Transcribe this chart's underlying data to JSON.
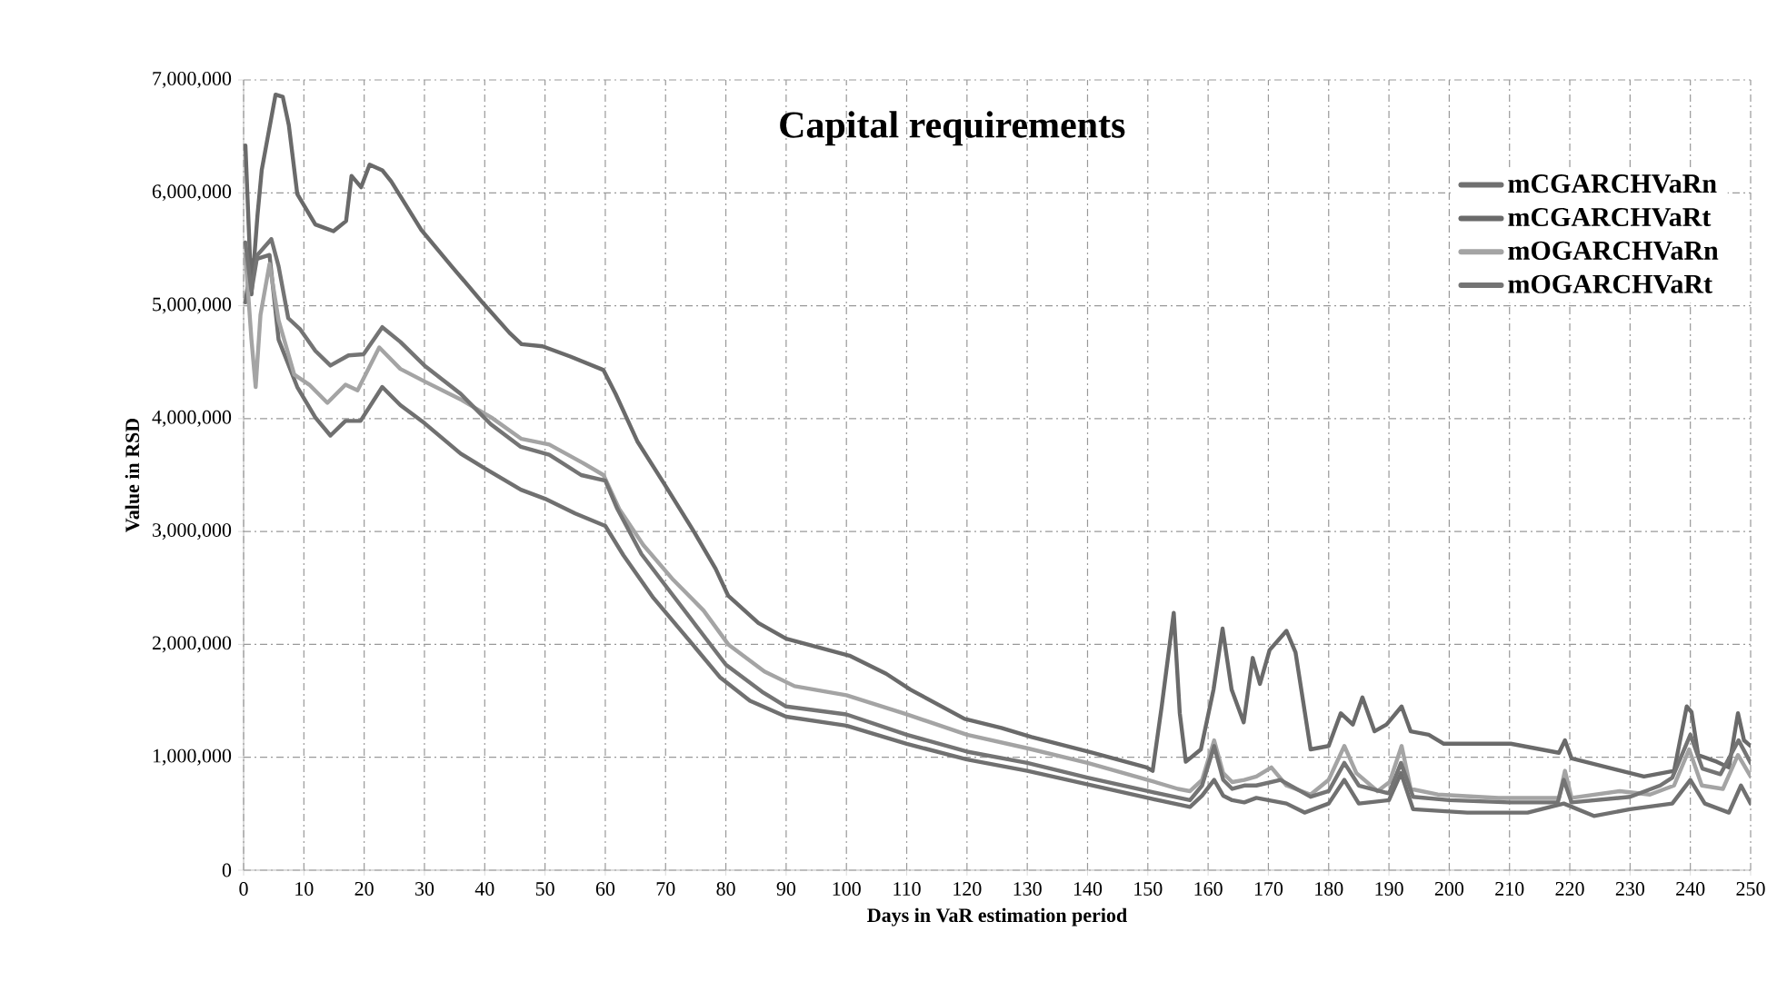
{
  "chart_data": {
    "type": "line",
    "title": "Capital requirements",
    "xlabel": "Days in VaR estimation period",
    "ylabel": "Value in RSD",
    "xlim": [
      0,
      250
    ],
    "xticks": [
      0,
      10,
      20,
      30,
      40,
      50,
      60,
      70,
      80,
      90,
      100,
      110,
      120,
      130,
      140,
      150,
      160,
      170,
      180,
      190,
      200,
      210,
      220,
      230,
      240,
      250
    ],
    "ylim": [
      0,
      7000000
    ],
    "yticks": [
      0,
      {
        "value": 1000000,
        "label": "1,000,000"
      },
      {
        "value": 2000000,
        "label": "2,000,000"
      },
      {
        "value": 3000000,
        "label": "3,000,000"
      },
      {
        "value": 4000000,
        "label": "4,000,000"
      },
      {
        "value": 5000000,
        "label": "5,000,000"
      },
      {
        "value": 6000000,
        "label": "6,000,000"
      },
      {
        "value": 7000000,
        "label": "7,000,000"
      }
    ],
    "grid": true,
    "legend": "top right",
    "marker": "none",
    "line_style": "solid",
    "series": [
      {
        "name": "mCGARCHVaRn",
        "color": "#707070",
        "x": [
          0.3,
          1.3,
          4.3,
          5.8,
          8.9,
          11.9,
          14.4,
          16.9,
          19.4,
          23,
          26,
          30,
          36,
          40,
          46,
          50,
          55,
          60,
          63,
          68,
          74,
          79,
          84,
          90,
          100,
          110,
          120,
          130,
          140,
          150,
          157,
          159,
          161,
          162.5,
          164,
          166,
          168,
          173,
          176,
          180,
          182.6,
          185,
          190,
          192,
          194,
          203,
          213,
          219,
          224,
          230,
          237,
          240,
          242.4,
          246.4,
          248.4,
          250
        ],
        "values": [
          5030000,
          5400000,
          5450000,
          4700000,
          4280000,
          4010000,
          3850000,
          3980000,
          3980000,
          4280000,
          4120000,
          3960000,
          3690000,
          3560000,
          3370000,
          3290000,
          3160000,
          3050000,
          2790000,
          2410000,
          2030000,
          1710000,
          1500000,
          1360000,
          1280000,
          1120000,
          980000,
          880000,
          760000,
          640000,
          560000,
          660000,
          800000,
          660000,
          620000,
          600000,
          640000,
          590000,
          510000,
          590000,
          800000,
          590000,
          620000,
          860000,
          540000,
          510000,
          510000,
          590000,
          480000,
          540000,
          590000,
          800000,
          590000,
          510000,
          750000,
          590000
        ]
      },
      {
        "name": "mCGARCHVaRt",
        "color": "#6a6a6a",
        "x": [
          0.3,
          1.3,
          2.3,
          3,
          5.3,
          6.5,
          7.5,
          8.9,
          11.9,
          14.9,
          17,
          17.9,
          19.5,
          20.9,
          23,
          24.5,
          29.5,
          34.5,
          39.6,
          44.1,
          46.1,
          49.6,
          54.2,
          59.7,
          61.7,
          65.3,
          69.8,
          74.8,
          78.3,
          80.4,
          85.4,
          90,
          100.5,
          106.6,
          110.6,
          119.6,
          125.7,
          130.7,
          140.8,
          149.8,
          150.8,
          152.3,
          154.3,
          155.3,
          156.3,
          158.8,
          160.9,
          162.4,
          163.9,
          165.9,
          167.4,
          168.6,
          170.2,
          173,
          174.5,
          177,
          180,
          182,
          184,
          185.6,
          187.6,
          189.6,
          192.1,
          193.6,
          196.6,
          199.1,
          210.2,
          218.2,
          219.2,
          220.3,
          232.3,
          237.3,
          239.4,
          240.2,
          241.3,
          244.4,
          246.4,
          247.9,
          248.9,
          250
        ],
        "values": [
          6420000,
          5100000,
          5800000,
          6200000,
          6870000,
          6850000,
          6600000,
          5990000,
          5720000,
          5660000,
          5750000,
          6150000,
          6050000,
          6250000,
          6200000,
          6100000,
          5670000,
          5350000,
          5030000,
          4760000,
          4660000,
          4640000,
          4550000,
          4430000,
          4220000,
          3800000,
          3420000,
          2990000,
          2670000,
          2430000,
          2190000,
          2050000,
          1900000,
          1740000,
          1600000,
          1340000,
          1260000,
          1180000,
          1040000,
          910000,
          880000,
          1450000,
          2280000,
          1390000,
          960000,
          1070000,
          1600000,
          2140000,
          1600000,
          1310000,
          1880000,
          1650000,
          1950000,
          2120000,
          1930000,
          1070000,
          1100000,
          1390000,
          1290000,
          1530000,
          1230000,
          1290000,
          1450000,
          1230000,
          1200000,
          1120000,
          1120000,
          1040000,
          1150000,
          990000,
          830000,
          880000,
          1450000,
          1400000,
          1020000,
          960000,
          910000,
          1390000,
          1150000,
          1100000
        ]
      },
      {
        "name": "mOGARCHVaRn",
        "color": "#a4a4a4",
        "x": [
          0.3,
          1.3,
          2,
          2.8,
          4.3,
          5.8,
          8.4,
          10.9,
          13.9,
          16.9,
          18.9,
          22.5,
          26,
          30,
          36,
          41.1,
          46.1,
          50.7,
          56.2,
          59.7,
          62.3,
          66.3,
          71.3,
          76.3,
          80.4,
          86.4,
          91.4,
          100,
          110,
          120,
          130,
          140,
          150,
          155,
          157,
          159,
          161,
          162.5,
          164,
          166,
          168,
          170.5,
          173,
          177,
          180,
          182.6,
          184.6,
          188.1,
          190.1,
          192.1,
          193.6,
          198.1,
          208.2,
          218.2,
          219.2,
          220.3,
          228.3,
          233.3,
          237.3,
          239.8,
          241.9,
          245.4,
          247.9,
          250
        ],
        "values": [
          5450000,
          4700000,
          4280000,
          4920000,
          5370000,
          4870000,
          4390000,
          4300000,
          4140000,
          4300000,
          4250000,
          4630000,
          4440000,
          4330000,
          4170000,
          4010000,
          3820000,
          3770000,
          3610000,
          3500000,
          3200000,
          2880000,
          2570000,
          2300000,
          2000000,
          1760000,
          1630000,
          1550000,
          1380000,
          1200000,
          1080000,
          950000,
          800000,
          720000,
          700000,
          800000,
          1150000,
          860000,
          780000,
          800000,
          830000,
          910000,
          750000,
          670000,
          800000,
          1100000,
          860000,
          700000,
          780000,
          1100000,
          720000,
          670000,
          640000,
          640000,
          880000,
          640000,
          700000,
          670000,
          750000,
          1070000,
          750000,
          720000,
          1020000,
          830000
        ]
      },
      {
        "name": "mOGARCHVaRt",
        "color": "#747474",
        "x": [
          0.3,
          1.3,
          2.3,
          4.6,
          5.8,
          7.4,
          9.4,
          11.9,
          14.4,
          17.4,
          19.9,
          23,
          26,
          30,
          36,
          41,
          46,
          50.7,
          56,
          60,
          62,
          66,
          71,
          76,
          80,
          86,
          90,
          100,
          110,
          120,
          130,
          140,
          150,
          157,
          159,
          161,
          162.5,
          164,
          166,
          168,
          172,
          177,
          180,
          182.6,
          185,
          190,
          192,
          194,
          200,
          210,
          218,
          219,
          220.3,
          230,
          235,
          237,
          240,
          242,
          245,
          248,
          250
        ],
        "values": [
          5560000,
          5130000,
          5450000,
          5590000,
          5350000,
          4890000,
          4790000,
          4600000,
          4470000,
          4560000,
          4570000,
          4810000,
          4680000,
          4470000,
          4220000,
          3950000,
          3750000,
          3680000,
          3500000,
          3450000,
          3200000,
          2800000,
          2450000,
          2100000,
          1820000,
          1580000,
          1450000,
          1380000,
          1200000,
          1050000,
          950000,
          820000,
          700000,
          620000,
          750000,
          1100000,
          800000,
          720000,
          750000,
          750000,
          800000,
          650000,
          700000,
          950000,
          750000,
          680000,
          950000,
          650000,
          620000,
          600000,
          600000,
          800000,
          600000,
          650000,
          750000,
          820000,
          1200000,
          900000,
          850000,
          1150000,
          950000
        ]
      }
    ]
  }
}
